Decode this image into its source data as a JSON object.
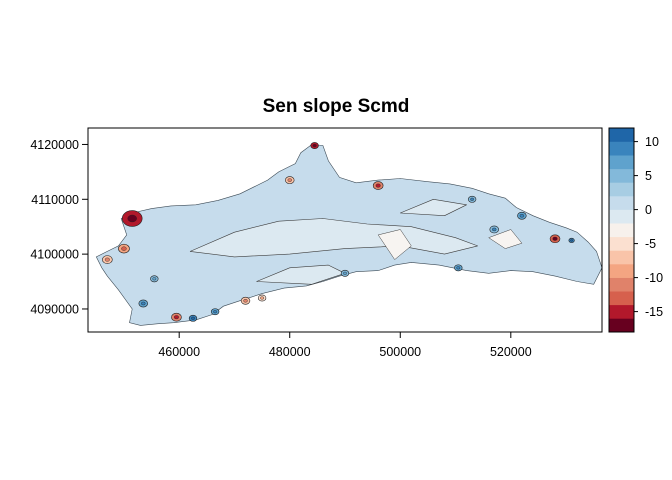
{
  "chart_data": {
    "type": "heatmap",
    "title": "Sen slope Scmd",
    "xlabel": "",
    "ylabel": "",
    "xlim": [
      443500,
      536500
    ],
    "ylim": [
      4085800,
      4123000
    ],
    "x_ticks": [
      {
        "value": 460000,
        "label": "460000"
      },
      {
        "value": 480000,
        "label": "480000"
      },
      {
        "value": 500000,
        "label": "500000"
      },
      {
        "value": 520000,
        "label": "520000"
      }
    ],
    "y_ticks": [
      {
        "value": 4090000,
        "label": "4090000"
      },
      {
        "value": 4100000,
        "label": "4100000"
      },
      {
        "value": 4110000,
        "label": "4110000"
      },
      {
        "value": 4120000,
        "label": "4120000"
      }
    ],
    "colorbar": {
      "range": [
        -18,
        12
      ],
      "breaks": [
        -18,
        -16,
        -14,
        -12,
        -10,
        -8,
        -6,
        -4,
        -2,
        0,
        2,
        4,
        6,
        8,
        10,
        12
      ],
      "colors": [
        "#67001f",
        "#b2182b",
        "#d6604d",
        "#e0826a",
        "#f4a582",
        "#f9c4a9",
        "#fbe0d0",
        "#f7f1ec",
        "#dce9f1",
        "#c6dcec",
        "#a7cde3",
        "#83b9da",
        "#5fa2cd",
        "#3a84bd",
        "#1f66a8"
      ],
      "ticks": [
        {
          "value": 10,
          "label": "10"
        },
        {
          "value": 5,
          "label": "5"
        },
        {
          "value": 0,
          "label": "0"
        },
        {
          "value": -5,
          "label": "-5"
        },
        {
          "value": -10,
          "label": "-10"
        },
        {
          "value": -15,
          "label": "-15"
        }
      ]
    },
    "region": {
      "outline": [
        [
          445000,
          4099500
        ],
        [
          447000,
          4100500
        ],
        [
          449000,
          4101500
        ],
        [
          450500,
          4103500
        ],
        [
          449500,
          4106500
        ],
        [
          451500,
          4107500
        ],
        [
          455000,
          4108300
        ],
        [
          458500,
          4108800
        ],
        [
          463000,
          4109000
        ],
        [
          467000,
          4109800
        ],
        [
          471000,
          4111000
        ],
        [
          474000,
          4112500
        ],
        [
          476000,
          4113500
        ],
        [
          478000,
          4115000
        ],
        [
          480000,
          4116000
        ],
        [
          481000,
          4116500
        ],
        [
          482000,
          4118500
        ],
        [
          484000,
          4120000
        ],
        [
          486000,
          4119800
        ],
        [
          487000,
          4117000
        ],
        [
          489000,
          4114000
        ],
        [
          492000,
          4113000
        ],
        [
          496000,
          4113500
        ],
        [
          500000,
          4113800
        ],
        [
          505000,
          4113200
        ],
        [
          509000,
          4112800
        ],
        [
          513000,
          4112000
        ],
        [
          516000,
          4111000
        ],
        [
          519000,
          4110200
        ],
        [
          521000,
          4108500
        ],
        [
          524000,
          4107000
        ],
        [
          527000,
          4105800
        ],
        [
          530000,
          4104800
        ],
        [
          532000,
          4104000
        ],
        [
          534000,
          4102200
        ],
        [
          535500,
          4100500
        ],
        [
          536500,
          4097500
        ],
        [
          535000,
          4094500
        ],
        [
          532000,
          4095000
        ],
        [
          528000,
          4096000
        ],
        [
          524000,
          4096800
        ],
        [
          520000,
          4097000
        ],
        [
          516000,
          4096500
        ],
        [
          512000,
          4097000
        ],
        [
          507000,
          4098000
        ],
        [
          502000,
          4098500
        ],
        [
          499000,
          4098000
        ],
        [
          496000,
          4097000
        ],
        [
          492000,
          4096800
        ],
        [
          489000,
          4096000
        ],
        [
          486000,
          4095000
        ],
        [
          483000,
          4094200
        ],
        [
          479000,
          4093800
        ],
        [
          475000,
          4092800
        ],
        [
          471000,
          4091500
        ],
        [
          468000,
          4090500
        ],
        [
          466000,
          4089000
        ],
        [
          463000,
          4088000
        ],
        [
          459000,
          4087500
        ],
        [
          456000,
          4087300
        ],
        [
          453000,
          4087000
        ],
        [
          451000,
          4087500
        ],
        [
          451500,
          4090000
        ],
        [
          449000,
          4093500
        ],
        [
          447000,
          4096000
        ],
        [
          446000,
          4097500
        ]
      ],
      "light_red_patches": [
        [
          [
            462000,
            4100500
          ],
          [
            470000,
            4104000
          ],
          [
            478000,
            4106000
          ],
          [
            486000,
            4106500
          ],
          [
            494000,
            4105500
          ],
          [
            502000,
            4105000
          ],
          [
            510000,
            4103000
          ],
          [
            514000,
            4101500
          ],
          [
            508000,
            4100000
          ],
          [
            500000,
            4101500
          ],
          [
            490000,
            4101000
          ],
          [
            480000,
            4100000
          ],
          [
            470000,
            4099500
          ]
        ],
        [
          [
            474000,
            4095000
          ],
          [
            480000,
            4097500
          ],
          [
            487000,
            4098000
          ],
          [
            490000,
            4096500
          ],
          [
            484000,
            4094500
          ]
        ],
        [
          [
            500000,
            4107500
          ],
          [
            506000,
            4110000
          ],
          [
            512000,
            4109000
          ],
          [
            508000,
            4107000
          ]
        ]
      ],
      "white_patches": [
        [
          [
            496000,
            4103500
          ],
          [
            500000,
            4104500
          ],
          [
            502000,
            4101500
          ],
          [
            499000,
            4099000
          ]
        ],
        [
          [
            516000,
            4103000
          ],
          [
            520000,
            4104500
          ],
          [
            522000,
            4102000
          ],
          [
            519000,
            4101000
          ]
        ]
      ],
      "hotspots": [
        {
          "x": 451500,
          "y": 4106500,
          "value": -16,
          "size": 1800
        },
        {
          "x": 484500,
          "y": 4119800,
          "value": -16,
          "size": 700
        },
        {
          "x": 496000,
          "y": 4112500,
          "value": -12,
          "size": 900
        },
        {
          "x": 528000,
          "y": 4102800,
          "value": -14,
          "size": 900
        },
        {
          "x": 450000,
          "y": 4101000,
          "value": -10,
          "size": 1000
        },
        {
          "x": 447000,
          "y": 4099000,
          "value": -8,
          "size": 900
        },
        {
          "x": 459500,
          "y": 4088500,
          "value": -12,
          "size": 900
        },
        {
          "x": 472000,
          "y": 4091500,
          "value": -8,
          "size": 800
        },
        {
          "x": 480000,
          "y": 4113500,
          "value": -8,
          "size": 800
        },
        {
          "x": 475000,
          "y": 4092000,
          "value": -6,
          "size": 700
        },
        {
          "x": 462500,
          "y": 4088300,
          "value": 8,
          "size": 700
        },
        {
          "x": 453500,
          "y": 4091000,
          "value": 6,
          "size": 800
        },
        {
          "x": 466500,
          "y": 4089500,
          "value": 6,
          "size": 700
        },
        {
          "x": 510500,
          "y": 4097500,
          "value": 6,
          "size": 700
        },
        {
          "x": 517000,
          "y": 4104500,
          "value": 5,
          "size": 800
        },
        {
          "x": 522000,
          "y": 4107000,
          "value": 6,
          "size": 800
        },
        {
          "x": 513000,
          "y": 4110000,
          "value": 5,
          "size": 700
        },
        {
          "x": 531000,
          "y": 4102500,
          "value": 8,
          "size": 500
        },
        {
          "x": 455500,
          "y": 4095500,
          "value": 4,
          "size": 700
        },
        {
          "x": 490000,
          "y": 4096500,
          "value": 4,
          "size": 700
        }
      ]
    }
  }
}
